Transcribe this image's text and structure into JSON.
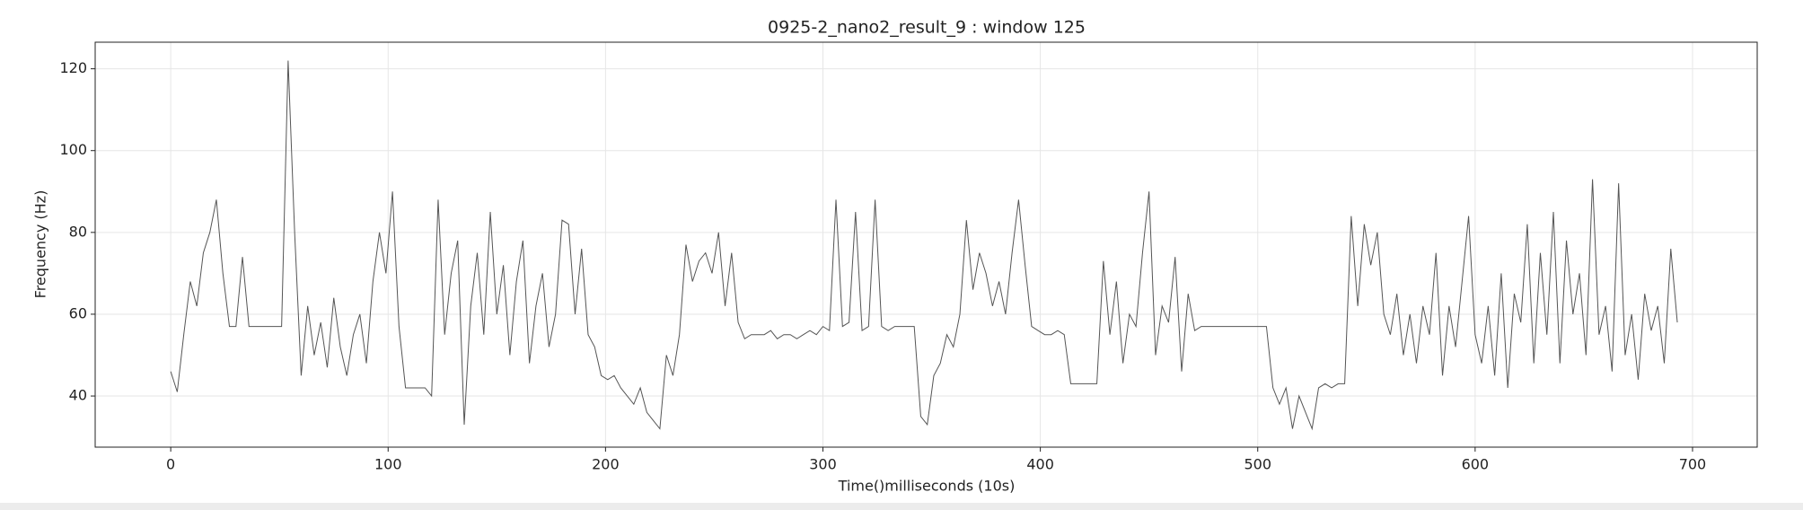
{
  "chart_data": {
    "type": "line",
    "title": "0925-2_nano2_result_9 : window 125",
    "x_label": "Time()milliseconds (10s)",
    "y_label": "Frequency (Hz)",
    "x": [
      0,
      3,
      6,
      9,
      12,
      15,
      18,
      21,
      24,
      27,
      30,
      33,
      36,
      39,
      42,
      45,
      48,
      51,
      54,
      57,
      60,
      63,
      66,
      69,
      72,
      75,
      78,
      81,
      84,
      87,
      90,
      93,
      96,
      99,
      102,
      105,
      108,
      111,
      114,
      117,
      120,
      123,
      126,
      129,
      132,
      135,
      138,
      141,
      144,
      147,
      150,
      153,
      156,
      159,
      162,
      165,
      168,
      171,
      174,
      177,
      180,
      183,
      186,
      189,
      192,
      195,
      198,
      201,
      204,
      207,
      210,
      213,
      216,
      219,
      222,
      225,
      228,
      231,
      234,
      237,
      240,
      243,
      246,
      249,
      252,
      255,
      258,
      261,
      264,
      267,
      270,
      273,
      276,
      279,
      282,
      285,
      288,
      291,
      294,
      297,
      300,
      303,
      306,
      309,
      312,
      315,
      318,
      321,
      324,
      327,
      330,
      333,
      336,
      339,
      342,
      345,
      348,
      351,
      354,
      357,
      360,
      363,
      366,
      369,
      372,
      375,
      378,
      381,
      384,
      387,
      390,
      393,
      396,
      399,
      402,
      405,
      408,
      411,
      414,
      417,
      420,
      423,
      426,
      429,
      432,
      435,
      438,
      441,
      444,
      447,
      450,
      453,
      456,
      459,
      462,
      465,
      468,
      471,
      474,
      477,
      480,
      483,
      486,
      489,
      492,
      495,
      498,
      501,
      504,
      507,
      510,
      513,
      516,
      519,
      522,
      525,
      528,
      531,
      534,
      537,
      540,
      543,
      546,
      549,
      552,
      555,
      558,
      561,
      564,
      567,
      570,
      573,
      576,
      579,
      582,
      585,
      588,
      591,
      594,
      597,
      600,
      603,
      606,
      609,
      612,
      615,
      618,
      621,
      624,
      627,
      630,
      633,
      636,
      639,
      642,
      645,
      648,
      651,
      654,
      657,
      660,
      663,
      666,
      669,
      672,
      675,
      678,
      681,
      684,
      687,
      690,
      693
    ],
    "values": [
      46,
      41,
      55,
      68,
      62,
      75,
      80,
      88,
      70,
      57,
      57,
      74,
      57,
      57,
      57,
      57,
      57,
      57,
      122,
      80,
      45,
      62,
      50,
      58,
      47,
      64,
      52,
      45,
      55,
      60,
      48,
      68,
      80,
      70,
      90,
      57,
      42,
      42,
      42,
      42,
      40,
      88,
      55,
      70,
      78,
      33,
      62,
      75,
      55,
      85,
      60,
      72,
      50,
      68,
      78,
      48,
      62,
      70,
      52,
      60,
      83,
      82,
      60,
      76,
      55,
      52,
      45,
      44,
      45,
      42,
      40,
      38,
      42,
      36,
      34,
      32,
      50,
      45,
      55,
      77,
      68,
      73,
      75,
      70,
      80,
      62,
      75,
      58,
      54,
      55,
      55,
      55,
      56,
      54,
      55,
      55,
      54,
      55,
      56,
      55,
      57,
      56,
      88,
      57,
      58,
      85,
      56,
      57,
      88,
      57,
      56,
      57,
      57,
      57,
      57,
      35,
      33,
      45,
      48,
      55,
      52,
      60,
      83,
      66,
      75,
      70,
      62,
      68,
      60,
      75,
      88,
      72,
      57,
      56,
      55,
      55,
      56,
      55,
      43,
      43,
      43,
      43,
      43,
      73,
      55,
      68,
      48,
      60,
      57,
      75,
      90,
      50,
      62,
      58,
      74,
      46,
      65,
      56,
      57,
      57,
      57,
      57,
      57,
      57,
      57,
      57,
      57,
      57,
      57,
      42,
      38,
      42,
      32,
      40,
      36,
      32,
      42,
      43,
      42,
      43,
      43,
      84,
      62,
      82,
      72,
      80,
      60,
      55,
      65,
      50,
      60,
      48,
      62,
      55,
      75,
      45,
      62,
      52,
      68,
      84,
      55,
      48,
      62,
      45,
      70,
      42,
      65,
      58,
      82,
      48,
      75,
      55,
      85,
      48,
      78,
      60,
      70,
      50,
      93,
      55,
      62,
      46,
      92,
      50,
      60,
      44,
      65,
      56,
      62,
      48,
      76,
      58
    ],
    "color": "#555555",
    "xlim": [
      -34.75,
      729.75
    ],
    "xticks": [
      0,
      100,
      200,
      300,
      400,
      500,
      600,
      700
    ],
    "ylim": [
      27.5,
      126.5
    ],
    "yticks": [
      40,
      60,
      80,
      100,
      120
    ],
    "grid": true
  }
}
